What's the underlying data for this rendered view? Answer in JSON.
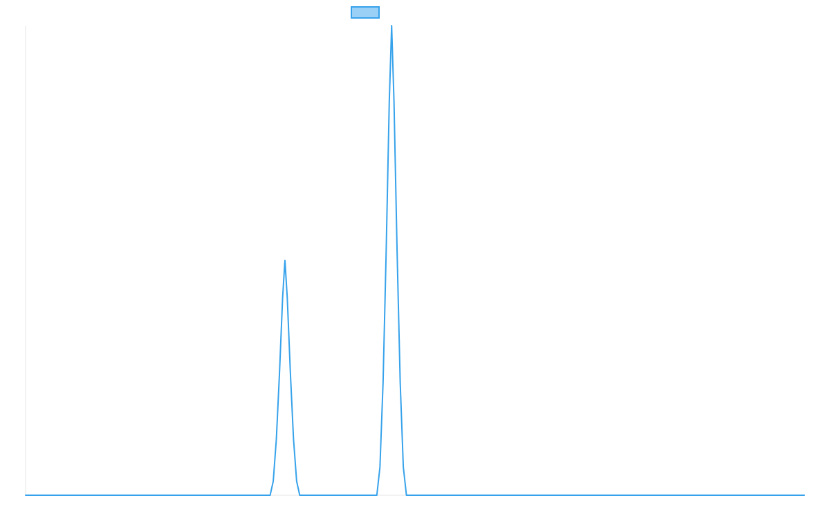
{
  "chart_data": {
    "type": "line",
    "title": "",
    "xlabel": "",
    "ylabel": "",
    "legend": {
      "position": "top-center",
      "entries": [
        {
          "series_index": 0
        }
      ]
    },
    "grid": false,
    "x_range": [
      0,
      100
    ],
    "y_range": [
      0,
      100
    ],
    "series": [
      {
        "color": "#36a2eb",
        "fill_color": "#9ad0f5",
        "line_width": 2,
        "points": [
          [
            0,
            0
          ],
          [
            31.4,
            0
          ],
          [
            31.8,
            3
          ],
          [
            32.2,
            12
          ],
          [
            32.6,
            26
          ],
          [
            33.0,
            42
          ],
          [
            33.3,
            50
          ],
          [
            33.6,
            42
          ],
          [
            34.0,
            26
          ],
          [
            34.4,
            12
          ],
          [
            34.8,
            3
          ],
          [
            35.2,
            0
          ],
          [
            45.1,
            0
          ],
          [
            45.5,
            6
          ],
          [
            45.9,
            24
          ],
          [
            46.3,
            52
          ],
          [
            46.7,
            84
          ],
          [
            47.0,
            100
          ],
          [
            47.3,
            84
          ],
          [
            47.7,
            52
          ],
          [
            48.1,
            24
          ],
          [
            48.5,
            6
          ],
          [
            48.9,
            0
          ],
          [
            100,
            0
          ]
        ]
      }
    ]
  }
}
